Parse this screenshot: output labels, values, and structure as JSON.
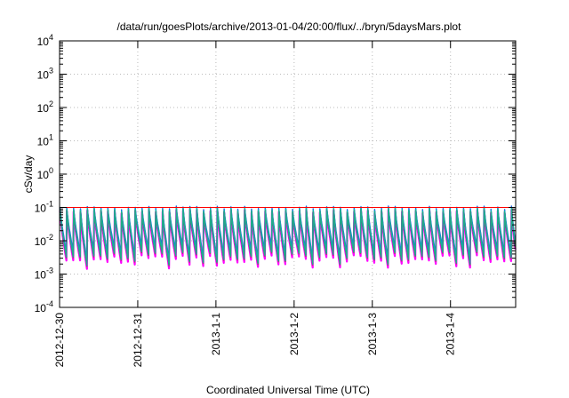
{
  "chart_data": {
    "type": "line",
    "title": "/data/run/goesPlots/archive/2013-01-04/20:00/flux/../bryn/5daysMars.plot",
    "xlabel": "Coordinated Universal Time (UTC)",
    "ylabel": "cSv/day",
    "y_scale": "log",
    "ylim": [
      0.0001,
      10000
    ],
    "y_ticks": [
      {
        "value": 0.0001,
        "base": "10",
        "exp": "-4"
      },
      {
        "value": 0.001,
        "base": "10",
        "exp": "-3"
      },
      {
        "value": 0.01,
        "base": "10",
        "exp": "-2"
      },
      {
        "value": 0.1,
        "base": "10",
        "exp": "-1"
      },
      {
        "value": 1,
        "base": "10",
        "exp": "0"
      },
      {
        "value": 10,
        "base": "10",
        "exp": "1"
      },
      {
        "value": 100,
        "base": "10",
        "exp": "2"
      },
      {
        "value": 1000,
        "base": "10",
        "exp": "3"
      },
      {
        "value": 10000,
        "base": "10",
        "exp": "4"
      }
    ],
    "xlim": [
      "2012-12-30 00:00",
      "2013-01-04 20:00"
    ],
    "x_ticks": [
      "2012-12-30",
      "2012-12-31",
      "2013-1-1",
      "2013-1-2",
      "2013-1-3",
      "2013-1-4"
    ],
    "grid": true,
    "reference_line": {
      "y": 0.1,
      "color": "#ff0000"
    },
    "series_colors": [
      "#ff00ff",
      "#cc2266",
      "#1a1a60",
      "#ff2020",
      "#2266dd",
      "#00bbcc",
      "#22aa88"
    ],
    "pulse_period_hours": 2.1,
    "series_level_factors": [
      0.35,
      0.5,
      0.6,
      0.8,
      1.0,
      0.7,
      0.55
    ],
    "envelope": {
      "peak": [
        0.085,
        0.11
      ],
      "trough": [
        0.0015,
        0.004
      ]
    }
  }
}
